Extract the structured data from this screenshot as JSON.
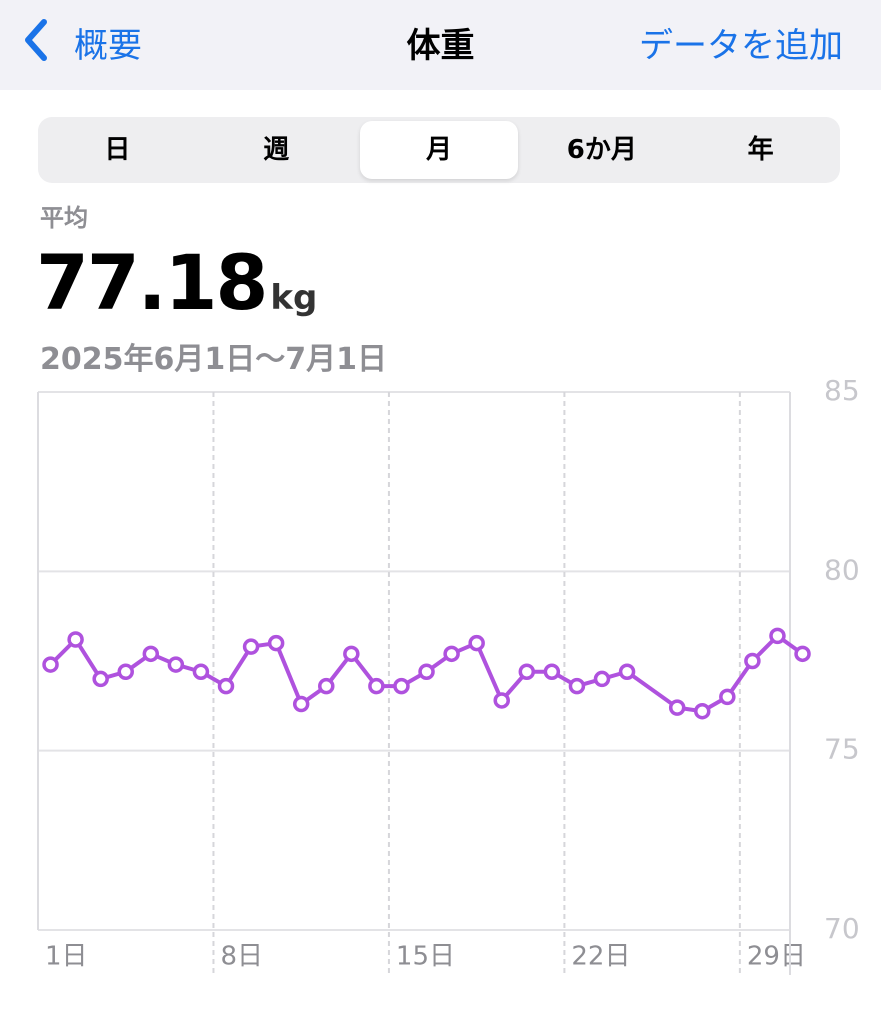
{
  "header": {
    "back": "概要",
    "title": "体重",
    "action": "データを追加"
  },
  "segments": {
    "items": [
      "日",
      "週",
      "月",
      "6か月",
      "年"
    ],
    "selected_index": 2
  },
  "summary": {
    "label": "平均",
    "value": "77.18",
    "unit": "kg",
    "range": "2025年6月1日〜7月1日"
  },
  "chart_data": {
    "type": "line",
    "x": [
      1,
      2,
      3,
      4,
      5,
      6,
      7,
      8,
      9,
      10,
      11,
      12,
      13,
      14,
      15,
      16,
      17,
      18,
      19,
      20,
      21,
      22,
      23,
      24,
      26,
      27,
      28,
      29,
      30,
      31
    ],
    "series": [
      {
        "name": "体重",
        "color": "#af52de",
        "values": [
          77.4,
          78.1,
          77.0,
          77.2,
          77.7,
          77.4,
          77.2,
          76.8,
          77.9,
          78.0,
          76.3,
          76.8,
          77.7,
          76.8,
          76.8,
          77.2,
          77.7,
          78.0,
          76.4,
          77.2,
          77.2,
          76.8,
          77.0,
          77.2,
          76.2,
          76.1,
          76.5,
          77.5,
          78.2,
          77.7
        ]
      }
    ],
    "xlim": [
      1,
      31
    ],
    "xticks": [
      {
        "value": 1,
        "label": "1日"
      },
      {
        "value": 8,
        "label": "8日"
      },
      {
        "value": 15,
        "label": "15日"
      },
      {
        "value": 22,
        "label": "22日"
      },
      {
        "value": 29,
        "label": "29日"
      }
    ],
    "ylim": [
      70,
      85
    ],
    "yticks": [
      70,
      75,
      80,
      85
    ],
    "grid": true
  }
}
